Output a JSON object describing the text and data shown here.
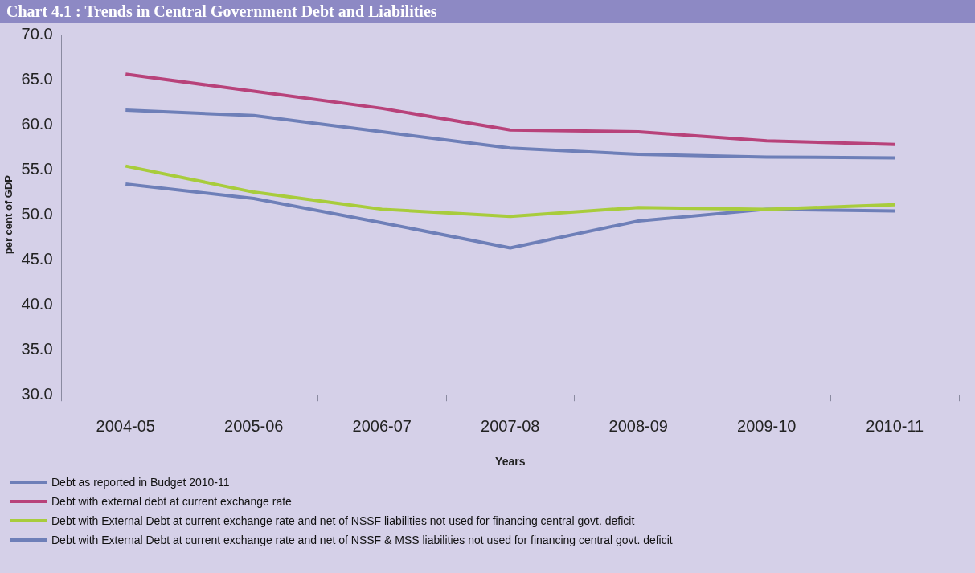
{
  "chart_data": {
    "type": "line",
    "title": "Chart 4.1 : Trends in Central Government Debt and Liabilities",
    "xlabel": "Years",
    "ylabel": "per cent of GDP",
    "categories": [
      "2004-05",
      "2005-06",
      "2006-07",
      "2007-08",
      "2008-09",
      "2009-10",
      "2010-11"
    ],
    "series": [
      {
        "name": "Debt as reported in Budget 2010-11",
        "color": "#6e7fb8",
        "values": [
          61.6,
          61.0,
          59.2,
          57.4,
          56.7,
          56.4,
          56.3
        ]
      },
      {
        "name": "Debt with external debt at current exchange rate",
        "color": "#b8427a",
        "values": [
          65.6,
          63.7,
          61.8,
          59.4,
          59.2,
          58.2,
          57.8
        ]
      },
      {
        "name": "Debt with External Debt at current exchange rate and net of NSSF liabilities not used for financing central govt. deficit",
        "color": "#a8cc3c",
        "values": [
          55.4,
          52.5,
          50.6,
          49.8,
          50.8,
          50.6,
          51.1
        ]
      },
      {
        "name": "Debt with External Debt at current exchange rate and net of NSSF & MSS liabilities not used for financing central govt. deficit",
        "color": "#6e7fb8",
        "values": [
          53.4,
          51.8,
          49.1,
          46.3,
          49.3,
          50.6,
          50.4
        ]
      }
    ],
    "ylim": [
      30,
      70
    ],
    "yticks": [
      {
        "value": 30,
        "label": "30.0"
      },
      {
        "value": 35,
        "label": "35.0"
      },
      {
        "value": 40,
        "label": "40.0"
      },
      {
        "value": 45,
        "label": "45.0"
      },
      {
        "value": 50,
        "label": "50.0"
      },
      {
        "value": 55,
        "label": "55.0"
      },
      {
        "value": 60,
        "label": "60.0"
      },
      {
        "value": 65,
        "label": "65.0"
      },
      {
        "value": 70,
        "label": "70.0"
      }
    ],
    "grid": "y",
    "legend": "bottom",
    "marker": "none",
    "line_style": "solid"
  }
}
